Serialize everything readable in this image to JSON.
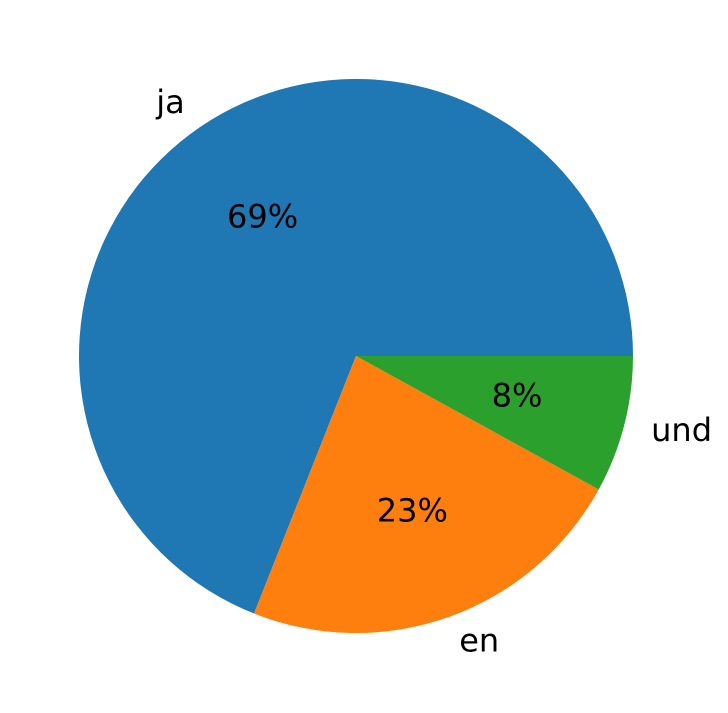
{
  "chart_data": {
    "type": "pie",
    "categories": [
      "ja",
      "en",
      "und"
    ],
    "values": [
      69,
      23,
      8
    ],
    "value_labels": [
      "69%",
      "23%",
      "8%"
    ],
    "colors": [
      "#1f77b4",
      "#ff7f0e",
      "#2ca02c"
    ]
  }
}
